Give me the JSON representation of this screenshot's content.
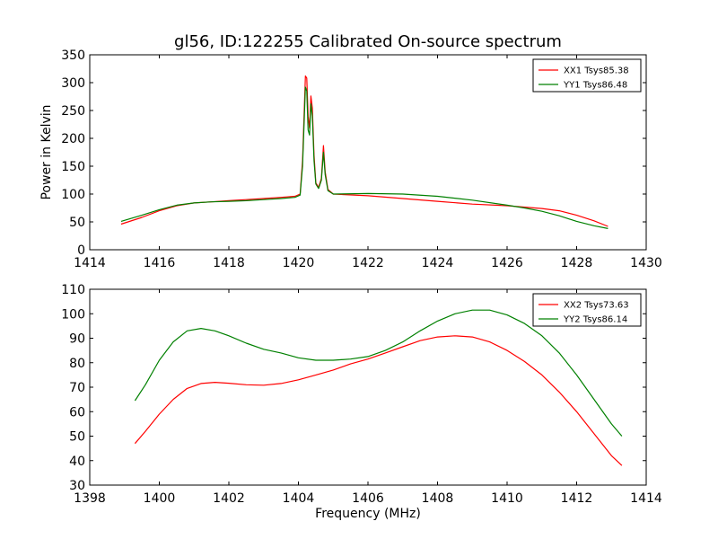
{
  "figure_title": "gl56, ID:122255 Calibrated On-source spectrum",
  "colors": {
    "red": "#ff0000",
    "green": "#008000",
    "axis": "#000000"
  },
  "chart_data": [
    {
      "type": "line",
      "title": "",
      "xlabel": "",
      "ylabel": "Power in Kelvin",
      "xlim": [
        1414,
        1430
      ],
      "ylim": [
        0,
        350
      ],
      "xticks": [
        "1414",
        "1416",
        "1418",
        "1420",
        "1422",
        "1424",
        "1426",
        "1428",
        "1430"
      ],
      "yticks": [
        "0",
        "50",
        "100",
        "150",
        "200",
        "250",
        "300",
        "350"
      ],
      "legend_position": "top-right",
      "grid": false,
      "series": [
        {
          "name": "XX1 Tsys85.38",
          "color": "#ff0000",
          "points": [
            [
              1414.9,
              46
            ],
            [
              1415.5,
              58
            ],
            [
              1416.0,
              70
            ],
            [
              1416.5,
              79
            ],
            [
              1417.0,
              84
            ],
            [
              1417.5,
              86
            ],
            [
              1418.0,
              88
            ],
            [
              1418.5,
              90
            ],
            [
              1419.0,
              92
            ],
            [
              1419.5,
              94
            ],
            [
              1419.9,
              96
            ],
            [
              1420.05,
              100
            ],
            [
              1420.12,
              160
            ],
            [
              1420.2,
              312
            ],
            [
              1420.24,
              308
            ],
            [
              1420.28,
              240
            ],
            [
              1420.32,
              218
            ],
            [
              1420.36,
              276
            ],
            [
              1420.4,
              255
            ],
            [
              1420.45,
              170
            ],
            [
              1420.5,
              120
            ],
            [
              1420.58,
              112
            ],
            [
              1420.66,
              128
            ],
            [
              1420.72,
              187
            ],
            [
              1420.77,
              140
            ],
            [
              1420.85,
              108
            ],
            [
              1421.0,
              100
            ],
            [
              1422.0,
              97
            ],
            [
              1423.0,
              92
            ],
            [
              1424.0,
              87
            ],
            [
              1425.0,
              82
            ],
            [
              1426.0,
              79
            ],
            [
              1427.0,
              74
            ],
            [
              1427.5,
              70
            ],
            [
              1428.0,
              62
            ],
            [
              1428.5,
              52
            ],
            [
              1428.9,
              42
            ]
          ]
        },
        {
          "name": "YY1 Tsys86.48",
          "color": "#008000",
          "points": [
            [
              1414.9,
              51
            ],
            [
              1415.5,
              62
            ],
            [
              1416.0,
              72
            ],
            [
              1416.5,
              80
            ],
            [
              1417.0,
              84
            ],
            [
              1417.5,
              86
            ],
            [
              1418.0,
              87
            ],
            [
              1418.5,
              88
            ],
            [
              1419.0,
              90
            ],
            [
              1419.5,
              92
            ],
            [
              1419.9,
              94
            ],
            [
              1420.05,
              98
            ],
            [
              1420.12,
              150
            ],
            [
              1420.2,
              292
            ],
            [
              1420.24,
              285
            ],
            [
              1420.28,
              215
            ],
            [
              1420.32,
              206
            ],
            [
              1420.36,
              262
            ],
            [
              1420.4,
              240
            ],
            [
              1420.45,
              160
            ],
            [
              1420.5,
              118
            ],
            [
              1420.58,
              110
            ],
            [
              1420.66,
              125
            ],
            [
              1420.72,
              175
            ],
            [
              1420.77,
              135
            ],
            [
              1420.85,
              106
            ],
            [
              1421.0,
              100
            ],
            [
              1422.0,
              101
            ],
            [
              1423.0,
              100
            ],
            [
              1424.0,
              96
            ],
            [
              1425.0,
              89
            ],
            [
              1426.0,
              80
            ],
            [
              1426.5,
              75
            ],
            [
              1427.0,
              69
            ],
            [
              1427.5,
              61
            ],
            [
              1428.0,
              51
            ],
            [
              1428.5,
              43
            ],
            [
              1428.9,
              38
            ]
          ]
        }
      ]
    },
    {
      "type": "line",
      "title": "",
      "xlabel": "Frequency (MHz)",
      "ylabel": "",
      "xlim": [
        1398,
        1414
      ],
      "ylim": [
        30,
        110
      ],
      "xticks": [
        "1398",
        "1400",
        "1402",
        "1404",
        "1406",
        "1408",
        "1410",
        "1412",
        "1414"
      ],
      "yticks": [
        "30",
        "40",
        "50",
        "60",
        "70",
        "80",
        "90",
        "100",
        "110"
      ],
      "legend_position": "top-right",
      "grid": false,
      "series": [
        {
          "name": "XX2 Tsys73.63",
          "color": "#ff0000",
          "points": [
            [
              1399.3,
              47
            ],
            [
              1399.6,
              52
            ],
            [
              1400.0,
              59
            ],
            [
              1400.4,
              65
            ],
            [
              1400.8,
              69.5
            ],
            [
              1401.2,
              71.5
            ],
            [
              1401.6,
              72
            ],
            [
              1402.0,
              71.6
            ],
            [
              1402.5,
              71
            ],
            [
              1403.0,
              70.8
            ],
            [
              1403.5,
              71.5
            ],
            [
              1404.0,
              73
            ],
            [
              1404.5,
              75
            ],
            [
              1405.0,
              77
            ],
            [
              1405.5,
              79.5
            ],
            [
              1406.0,
              81.5
            ],
            [
              1406.5,
              84
            ],
            [
              1407.0,
              86.5
            ],
            [
              1407.5,
              89
            ],
            [
              1408.0,
              90.5
            ],
            [
              1408.5,
              91
            ],
            [
              1409.0,
              90.5
            ],
            [
              1409.5,
              88.5
            ],
            [
              1410.0,
              85
            ],
            [
              1410.5,
              80.5
            ],
            [
              1411.0,
              75
            ],
            [
              1411.5,
              68
            ],
            [
              1412.0,
              60
            ],
            [
              1412.5,
              51
            ],
            [
              1413.0,
              42
            ],
            [
              1413.3,
              38
            ]
          ]
        },
        {
          "name": "YY2 Tsys86.14",
          "color": "#008000",
          "points": [
            [
              1399.3,
              64.5
            ],
            [
              1399.6,
              71
            ],
            [
              1400.0,
              81
            ],
            [
              1400.4,
              88.5
            ],
            [
              1400.8,
              93
            ],
            [
              1401.2,
              94
            ],
            [
              1401.6,
              93
            ],
            [
              1402.0,
              91
            ],
            [
              1402.5,
              88
            ],
            [
              1403.0,
              85.5
            ],
            [
              1403.5,
              84
            ],
            [
              1404.0,
              82
            ],
            [
              1404.5,
              81
            ],
            [
              1405.0,
              81
            ],
            [
              1405.5,
              81.5
            ],
            [
              1406.0,
              82.5
            ],
            [
              1406.5,
              85
            ],
            [
              1407.0,
              88.5
            ],
            [
              1407.5,
              93
            ],
            [
              1408.0,
              97
            ],
            [
              1408.5,
              100
            ],
            [
              1409.0,
              101.5
            ],
            [
              1409.5,
              101.5
            ],
            [
              1410.0,
              99.5
            ],
            [
              1410.5,
              96
            ],
            [
              1411.0,
              91
            ],
            [
              1411.5,
              84
            ],
            [
              1412.0,
              75
            ],
            [
              1412.5,
              65
            ],
            [
              1413.0,
              55
            ],
            [
              1413.3,
              50
            ]
          ]
        }
      ]
    }
  ]
}
